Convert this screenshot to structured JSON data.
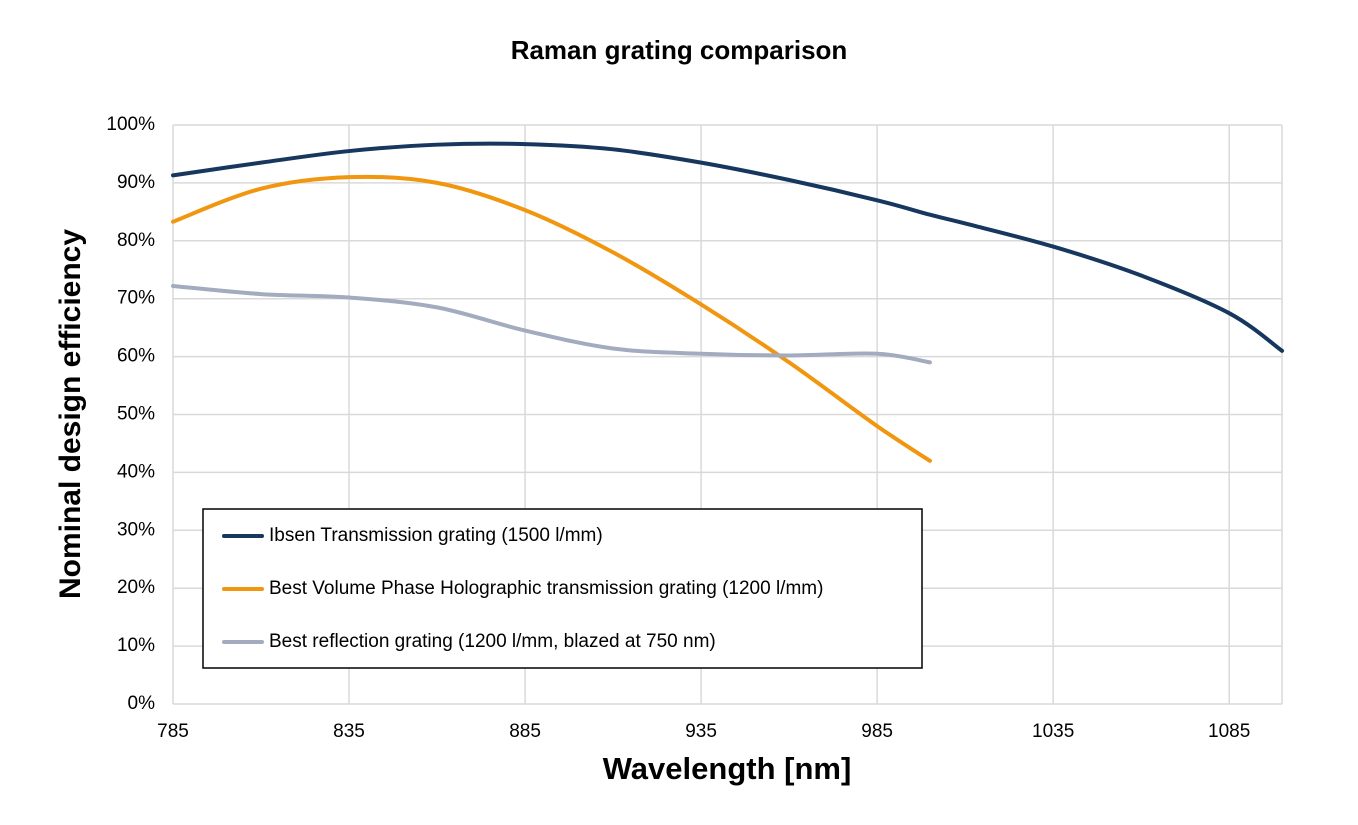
{
  "chart_data": {
    "type": "line",
    "title": "Raman grating comparison",
    "x_label": "Wavelength [nm]",
    "y_label": "Nominal design efficiency",
    "x": [
      785,
      810,
      835,
      860,
      885,
      910,
      935,
      960,
      985,
      1000,
      1010,
      1035,
      1060,
      1085,
      1100
    ],
    "series": [
      {
        "name": "Ibsen Transmission grating (1500 l/mm)",
        "color": "#17375e",
        "values": [
          91.3,
          93.5,
          95.5,
          96.6,
          96.7,
          95.8,
          93.5,
          90.5,
          87,
          84.5,
          83,
          79,
          74,
          67.5,
          61
        ]
      },
      {
        "name": "Best Volume Phase Holographic transmission grating (1200 l/mm)",
        "color": "#f0960f",
        "values": [
          83.3,
          89,
          91,
          90,
          85.3,
          78,
          69,
          59,
          48,
          42,
          null,
          null,
          null,
          null,
          null
        ]
      },
      {
        "name": "Best reflection grating (1200 l/mm, blazed at 750 nm)",
        "color": "#a3abbf",
        "values": [
          72.2,
          70.8,
          70.2,
          68.5,
          64.5,
          61.4,
          60.5,
          60.2,
          60.5,
          59,
          null,
          null,
          null,
          null,
          null
        ]
      }
    ],
    "xlim": [
      785,
      1100
    ],
    "xticks": [
      785,
      835,
      885,
      935,
      985,
      1035,
      1085
    ],
    "ylim": [
      0,
      100
    ],
    "yticks": [
      {
        "value": 0,
        "label": "0%"
      },
      {
        "value": 10,
        "label": "10%"
      },
      {
        "value": 20,
        "label": "20%"
      },
      {
        "value": 30,
        "label": "30%"
      },
      {
        "value": 40,
        "label": "40%"
      },
      {
        "value": 50,
        "label": "50%"
      },
      {
        "value": 60,
        "label": "60%"
      },
      {
        "value": 70,
        "label": "70%"
      },
      {
        "value": 80,
        "label": "80%"
      },
      {
        "value": 90,
        "label": "90%"
      },
      {
        "value": 100,
        "label": "100%"
      }
    ],
    "grid": true,
    "legend_position": "lower left"
  }
}
